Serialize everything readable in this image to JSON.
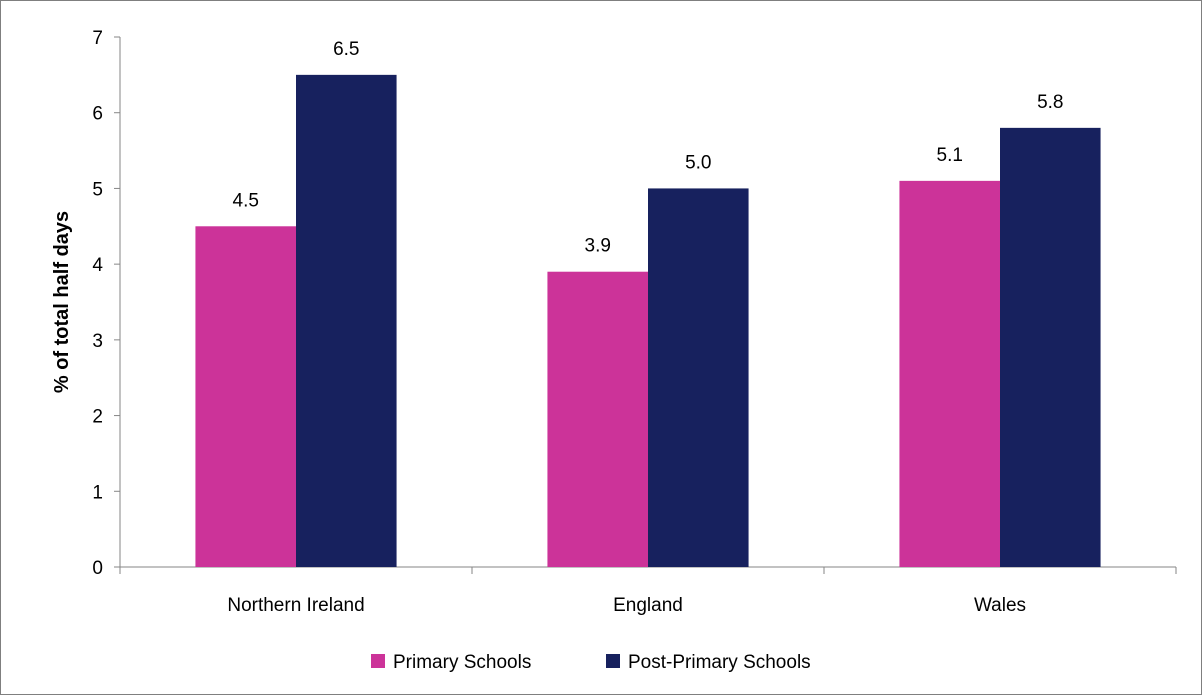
{
  "chart_data": {
    "type": "bar",
    "categories": [
      "Northern Ireland",
      "England",
      "Wales"
    ],
    "series": [
      {
        "name": "Primary Schools",
        "values": [
          4.5,
          3.9,
          5.1
        ],
        "labels": [
          "4.5",
          "3.9",
          "5.1"
        ],
        "color": "#CC3399"
      },
      {
        "name": "Post-Primary Schools",
        "values": [
          6.5,
          5.0,
          5.8
        ],
        "labels": [
          "6.5",
          "5.0",
          "5.8"
        ],
        "color": "#17215E"
      }
    ],
    "title": "",
    "xlabel": "",
    "ylabel": "% of total half days",
    "ylim": [
      0,
      7
    ],
    "yticks": [
      0,
      1,
      2,
      3,
      4,
      5,
      6,
      7
    ],
    "grid": false,
    "legend": "bottom"
  }
}
